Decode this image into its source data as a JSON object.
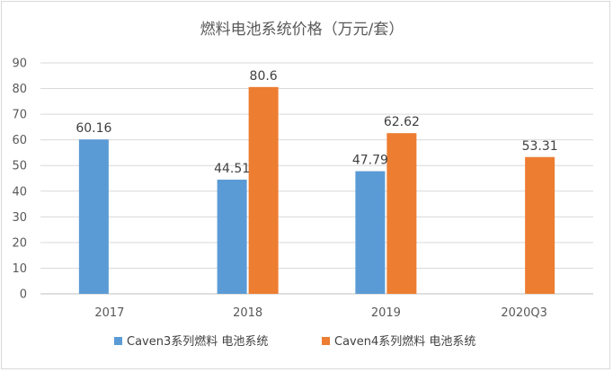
{
  "chart_data": {
    "type": "bar",
    "title": "燃料电池系统价格（万元/套）",
    "categories": [
      "2017",
      "2018",
      "2019",
      "2020Q3"
    ],
    "series": [
      {
        "name": "Caven3系列燃料 电池系统",
        "color": "#5b9bd5",
        "values": [
          60.16,
          44.51,
          47.79,
          null
        ]
      },
      {
        "name": "Caven4系列燃料 电池系统",
        "color": "#ed7d31",
        "values": [
          null,
          80.6,
          62.62,
          53.31
        ]
      }
    ],
    "data_labels": [
      [
        "60.16",
        "44.51",
        "47.79",
        ""
      ],
      [
        "",
        "80.6",
        "62.62",
        "53.31"
      ]
    ],
    "ylim": [
      0,
      90
    ],
    "yticks": [
      0,
      10,
      20,
      30,
      40,
      50,
      60,
      70,
      80,
      90
    ],
    "grid": true,
    "legend": "bottom",
    "xlabel": "",
    "ylabel": ""
  }
}
